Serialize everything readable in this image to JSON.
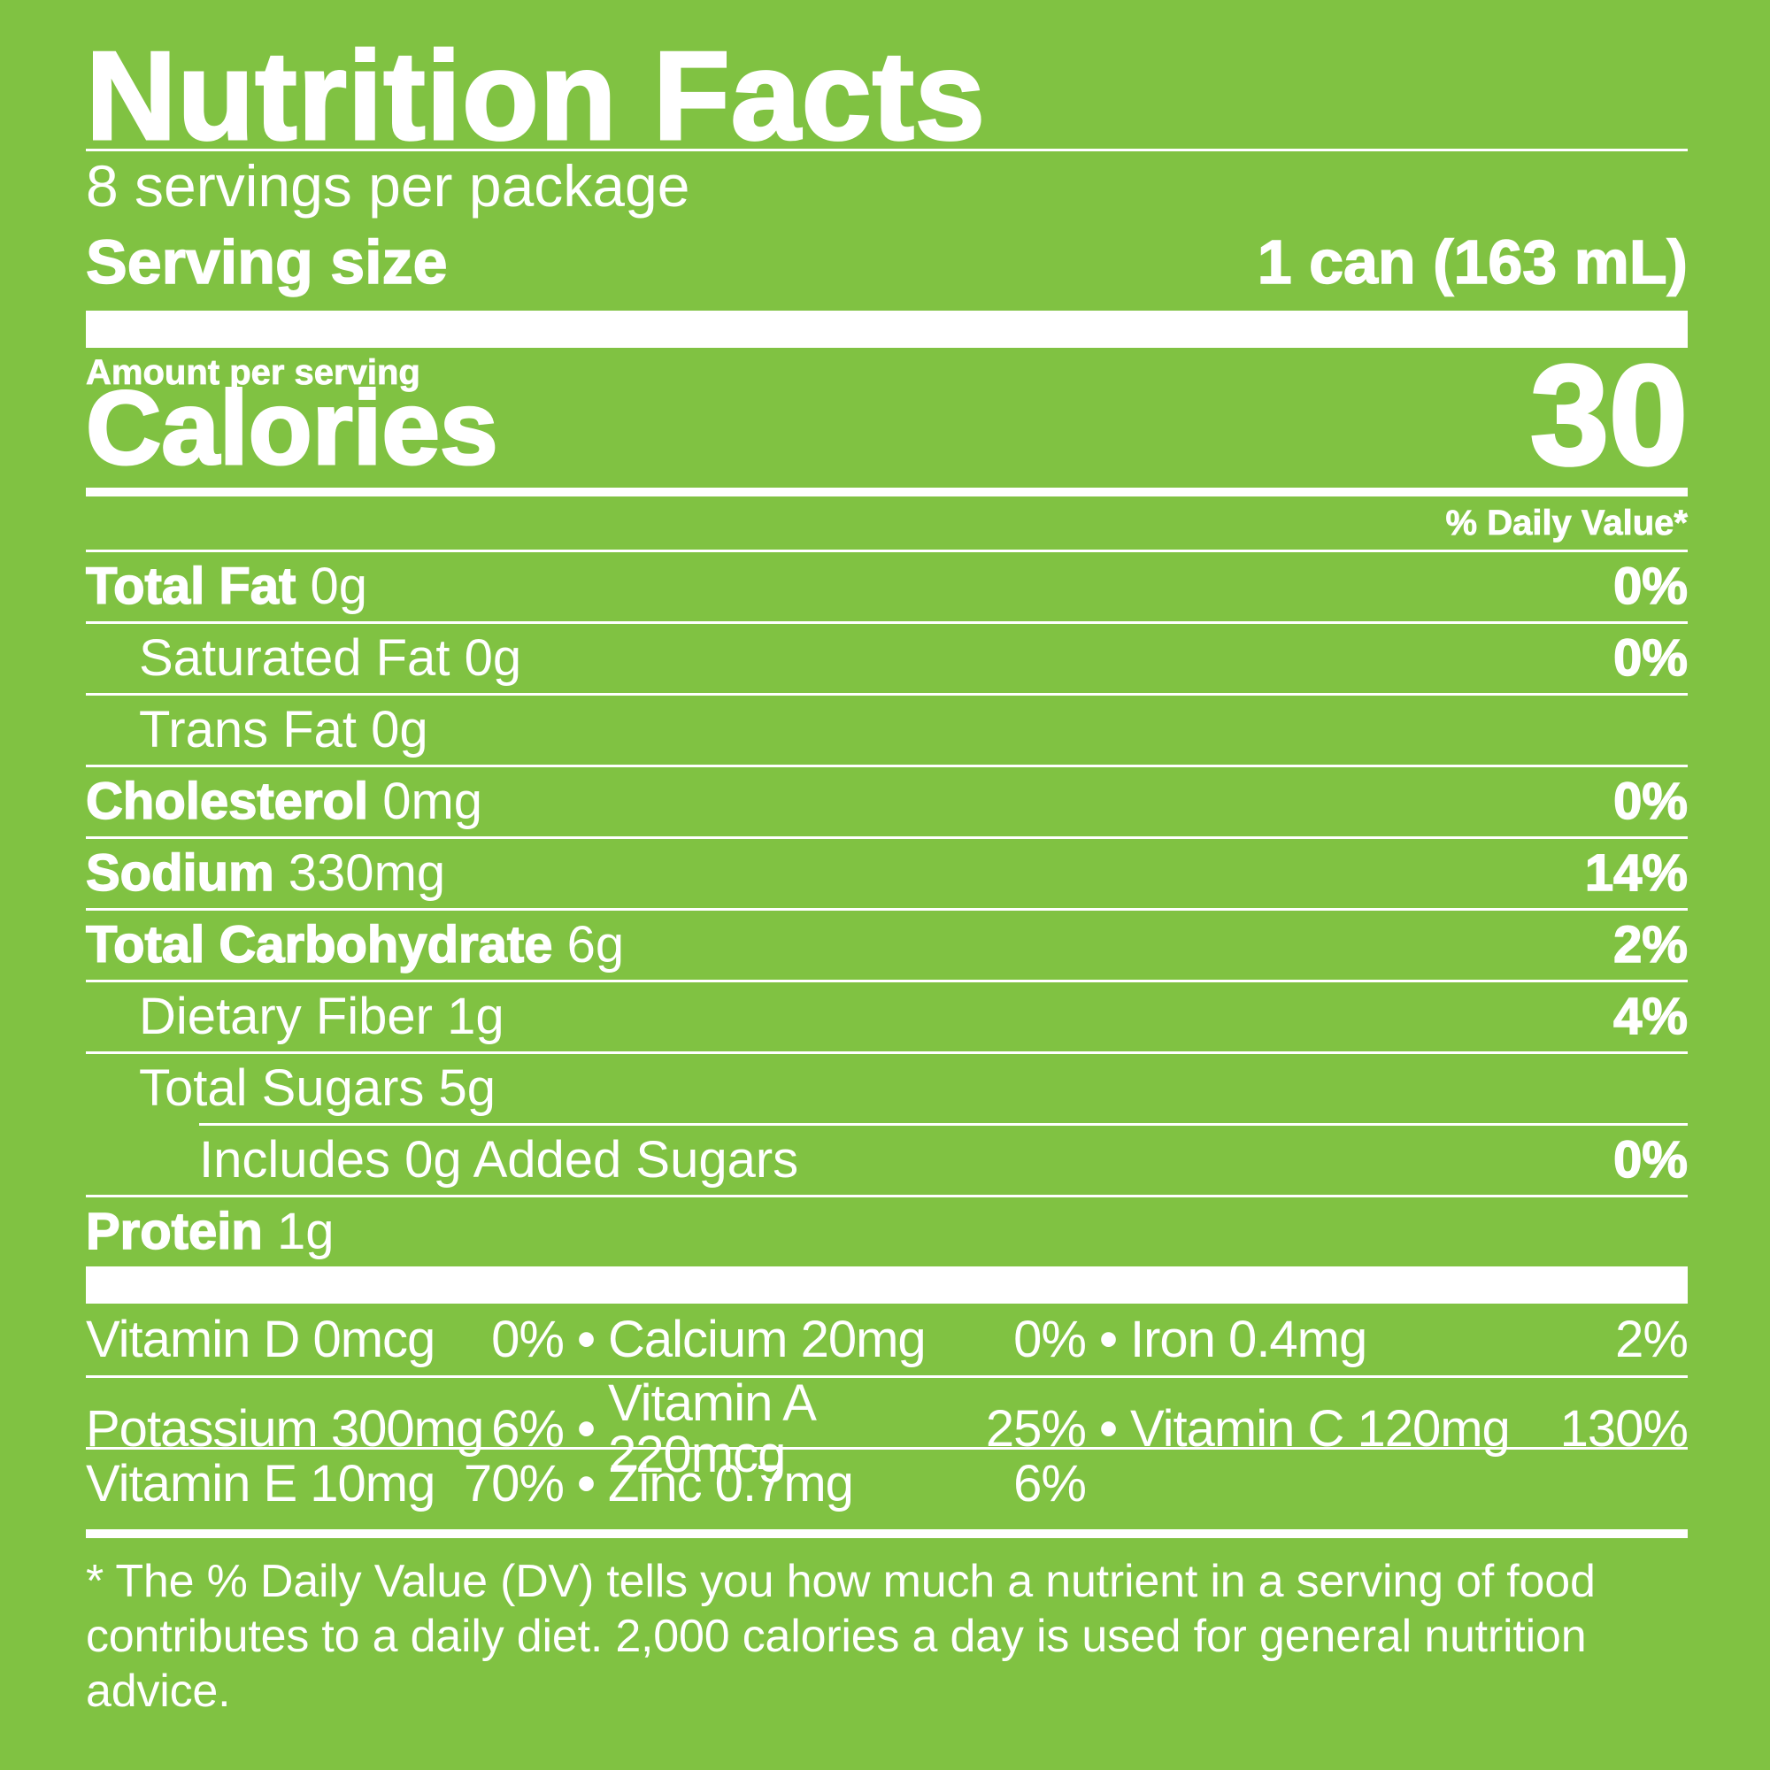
{
  "title": "Nutrition Facts",
  "servings_per_package": "8 servings per package",
  "serving_size": {
    "label": "Serving size",
    "value": "1 can (163 mL)"
  },
  "amount_per_serving": "Amount per serving",
  "calories": {
    "label": "Calories",
    "value": "30"
  },
  "daily_value_header": "% Daily Value*",
  "nutrients": {
    "total_fat": {
      "name": "Total Fat",
      "amount": "0g",
      "dv": "0%"
    },
    "saturated_fat": {
      "name": "Saturated Fat",
      "amount": "0g",
      "dv": "0%"
    },
    "trans_fat": {
      "name": "Trans Fat",
      "amount": "0g",
      "dv": ""
    },
    "cholesterol": {
      "name": "Cholesterol",
      "amount": "0mg",
      "dv": "0%"
    },
    "sodium": {
      "name": "Sodium",
      "amount": "330mg",
      "dv": "14%"
    },
    "total_carbohydrate": {
      "name": "Total Carbohydrate",
      "amount": "6g",
      "dv": "2%"
    },
    "dietary_fiber": {
      "name": "Dietary Fiber",
      "amount": "1g",
      "dv": "4%"
    },
    "total_sugars": {
      "name": "Total Sugars",
      "amount": "5g",
      "dv": ""
    },
    "added_sugars": {
      "name": "Includes 0g Added Sugars",
      "dv": "0%"
    },
    "protein": {
      "name": "Protein",
      "amount": "1g",
      "dv": ""
    }
  },
  "vitamins": [
    [
      {
        "name": "Vitamin D 0mcg",
        "dv": "0%"
      },
      {
        "name": "Calcium 20mg",
        "dv": "0%"
      },
      {
        "name": "Iron 0.4mg",
        "dv": "2%"
      }
    ],
    [
      {
        "name": "Potassium 300mg",
        "dv": "6%"
      },
      {
        "name": "Vitamin A 220mcg",
        "dv": "25%"
      },
      {
        "name": "Vitamin C 120mg",
        "dv": "130%"
      }
    ],
    [
      {
        "name": "Vitamin E 10mg",
        "dv": "70%"
      },
      {
        "name": "Zinc 0.7mg",
        "dv": "6%"
      }
    ]
  ],
  "bullet": "•",
  "footnote": {
    "line1": "* The % Daily Value (DV) tells you how much a nutrient in a serving of food",
    "line2": "contributes to a daily diet. 2,000 calories a day is used for general nutrition advice."
  },
  "colors": {
    "background": "#80c242",
    "text": "#ffffff"
  }
}
